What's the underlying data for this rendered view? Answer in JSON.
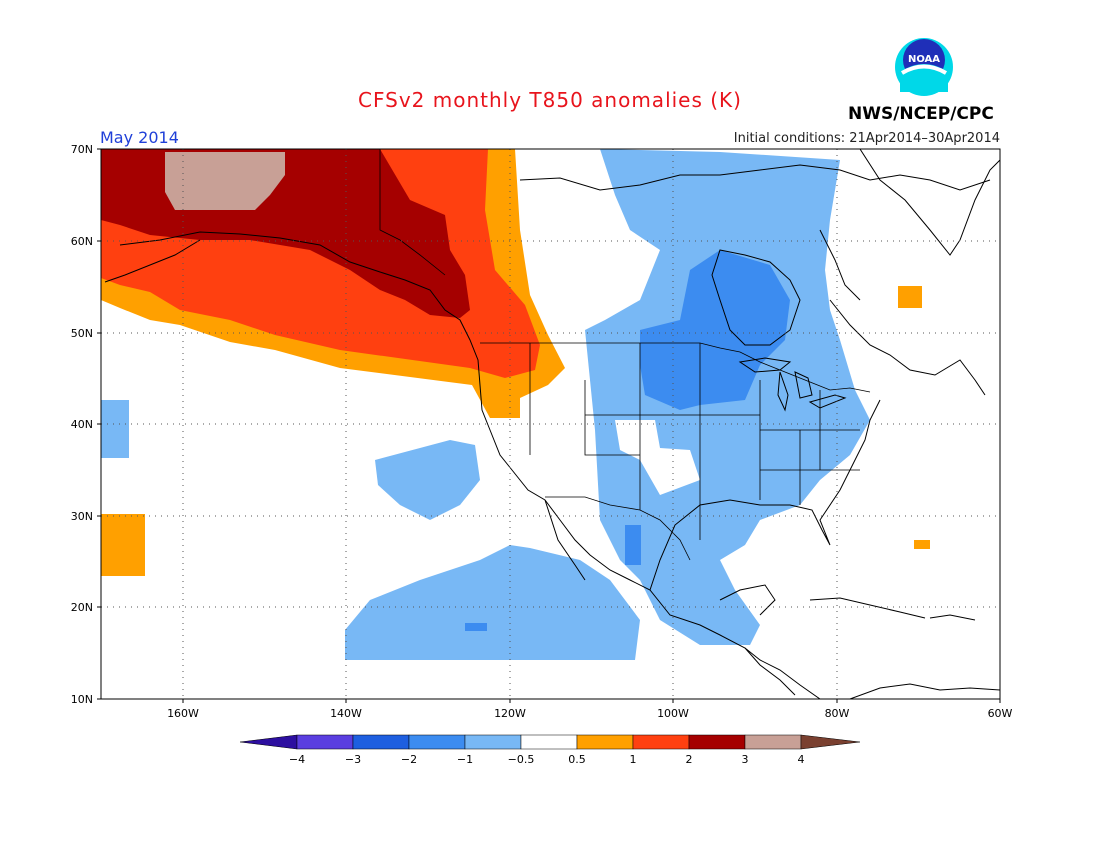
{
  "title": "CFSv2 monthly T850 anomalies (K)",
  "month_label": "May 2014",
  "initial_conditions": "Initial conditions: 21Apr2014–30Apr2014",
  "agency": "NWS/NCEP/CPC",
  "logo_text": "NOAA",
  "map": {
    "lat_labels": [
      "70N",
      "60N",
      "50N",
      "40N",
      "30N",
      "20N",
      "10N"
    ],
    "lon_labels": [
      "160W",
      "140W",
      "120W",
      "100W",
      "80W",
      "60W"
    ],
    "grid": "dotted"
  },
  "colorbar": {
    "tick_labels": [
      "−4",
      "−3",
      "−2",
      "−1",
      "−0.5",
      "0.5",
      "1",
      "2",
      "3",
      "4"
    ],
    "colors": [
      "#2d0fa0",
      "#5a3ee0",
      "#1e5fe0",
      "#3c8cf0",
      "#78b8f5",
      "#ffffff",
      "#ffa000",
      "#ff4010",
      "#a50000",
      "#c8a096",
      "#7a4030"
    ]
  },
  "colors": {
    "title": "#e8141c",
    "month": "#1f3fd8",
    "pos1": "#ffa000",
    "pos2": "#ff4010",
    "pos3": "#a50000",
    "pos4": "#c8a096",
    "neg1": "#78b8f5",
    "neg2": "#3c8cf0"
  }
}
